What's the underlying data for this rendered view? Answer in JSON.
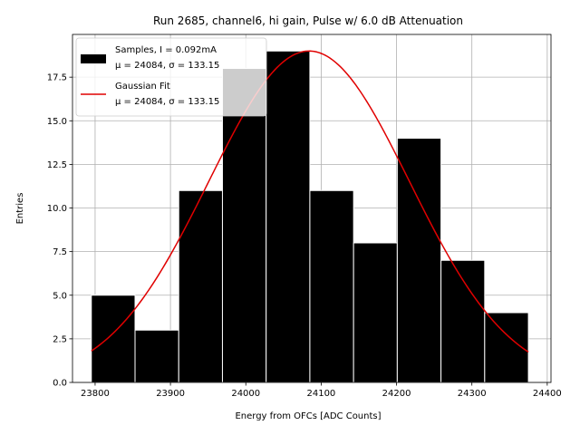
{
  "chart_data": {
    "type": "bar",
    "title": "Run 2685, channel6, hi gain, Pulse w/ 6.0 dB Attenuation",
    "xlabel": "Energy from OFCs [ADC Counts]",
    "ylabel": "Entries",
    "xlim": [
      23770,
      24405
    ],
    "ylim": [
      0,
      19.95
    ],
    "xticks": [
      23800,
      23900,
      24000,
      24100,
      24200,
      24300,
      24400
    ],
    "yticks": [
      0.0,
      2.5,
      5.0,
      7.5,
      10.0,
      12.5,
      15.0,
      17.5
    ],
    "ytick_labels": [
      "0.0",
      "2.5",
      "5.0",
      "7.5",
      "10.0",
      "12.5",
      "15.0",
      "17.5"
    ],
    "grid": true,
    "histogram": {
      "bin_edges": [
        23795,
        23853,
        23911,
        23969,
        24027,
        24085,
        24143,
        24201,
        24259,
        24317,
        24375
      ],
      "counts": [
        5,
        3,
        11,
        18,
        19,
        11,
        8,
        14,
        7,
        4
      ],
      "color": "#000000"
    },
    "fit": {
      "mean": 24084,
      "sigma": 133.15,
      "amplitude": 19.0,
      "x_range": [
        23795,
        24375
      ],
      "color": "#e00000"
    },
    "legend": {
      "location": "upper-left",
      "entries": [
        {
          "kind": "patch",
          "line1": "Samples, I = 0.092mA",
          "line2": "μ = 24084, σ = 133.15"
        },
        {
          "kind": "line",
          "line1": "Gaussian Fit",
          "line2": "μ = 24084, σ = 133.15"
        }
      ]
    }
  }
}
